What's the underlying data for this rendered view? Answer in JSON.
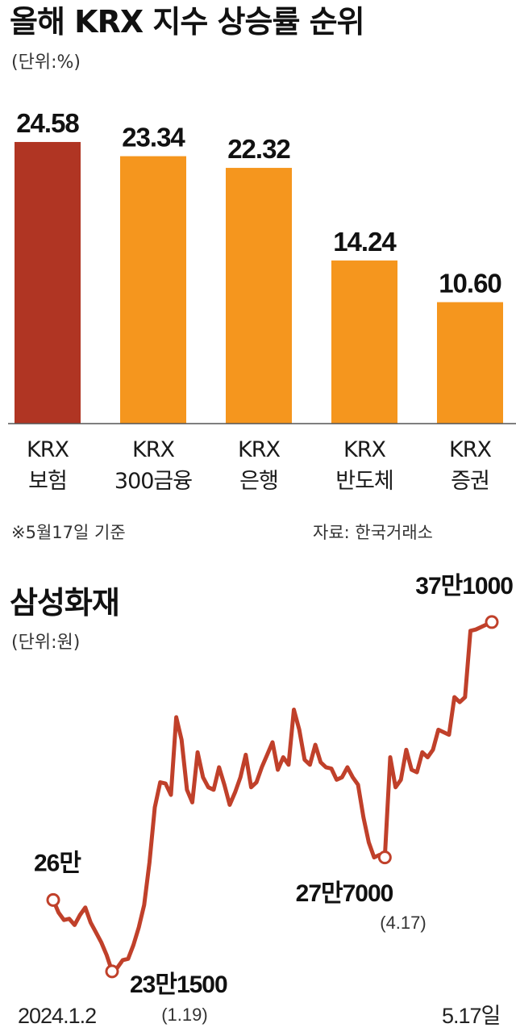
{
  "chart_data": [
    {
      "type": "bar",
      "title": "올해 KRX 지수 상승률 순위",
      "unit_label": "(단위:%)",
      "categories": [
        [
          "KRX",
          "보험"
        ],
        [
          "KRX",
          "300금융"
        ],
        [
          "KRX",
          "은행"
        ],
        [
          "KRX",
          "반도체"
        ],
        [
          "KRX",
          "증권"
        ]
      ],
      "values": [
        24.58,
        23.34,
        22.32,
        14.24,
        10.6
      ],
      "value_labels": [
        "24.58",
        "23.34",
        "22.32",
        "14.24",
        "10.60"
      ],
      "colors": [
        "#b03523",
        "#f5961e",
        "#f5961e",
        "#f5961e",
        "#f5961e"
      ],
      "ylim": [
        0,
        25
      ],
      "note_left": "※5월17일 기준",
      "note_right": "자료: 한국거래소"
    },
    {
      "type": "line",
      "title": "삼성화재",
      "unit_label": "(단위:원)",
      "color": "#c0402a",
      "x_start_label": "2024.1.2",
      "x_end_label": "5.17일",
      "ylim": [
        225000,
        380000
      ],
      "values": [
        260000,
        255000,
        252000,
        252500,
        250000,
        254000,
        257000,
        251000,
        247000,
        243000,
        238000,
        231500,
        233000,
        236000,
        236500,
        242000,
        249000,
        258000,
        275000,
        297000,
        307000,
        306500,
        302000,
        333000,
        324000,
        304000,
        299000,
        319000,
        309000,
        305000,
        304000,
        313000,
        306000,
        298000,
        303000,
        309000,
        318000,
        305000,
        307000,
        313000,
        318000,
        323000,
        312000,
        317000,
        314000,
        336000,
        328000,
        316000,
        314000,
        322000,
        315000,
        313000,
        312500,
        308000,
        309000,
        313000,
        309000,
        306000,
        293000,
        283000,
        277000,
        278000,
        277000,
        317000,
        305000,
        308000,
        320000,
        312000,
        311000,
        319000,
        317000,
        320000,
        328000,
        327000,
        326000,
        341000,
        339000,
        341000,
        367500,
        368000,
        369000,
        370000,
        371000
      ],
      "annotations": [
        {
          "index": 0,
          "label": "26만",
          "sub": ""
        },
        {
          "index": 11,
          "label": "23만1500",
          "sub": "(1.19)"
        },
        {
          "index": 62,
          "label": "27만7000",
          "sub": "(4.17)"
        },
        {
          "index": 82,
          "label": "37만1000",
          "sub": ""
        }
      ]
    }
  ]
}
